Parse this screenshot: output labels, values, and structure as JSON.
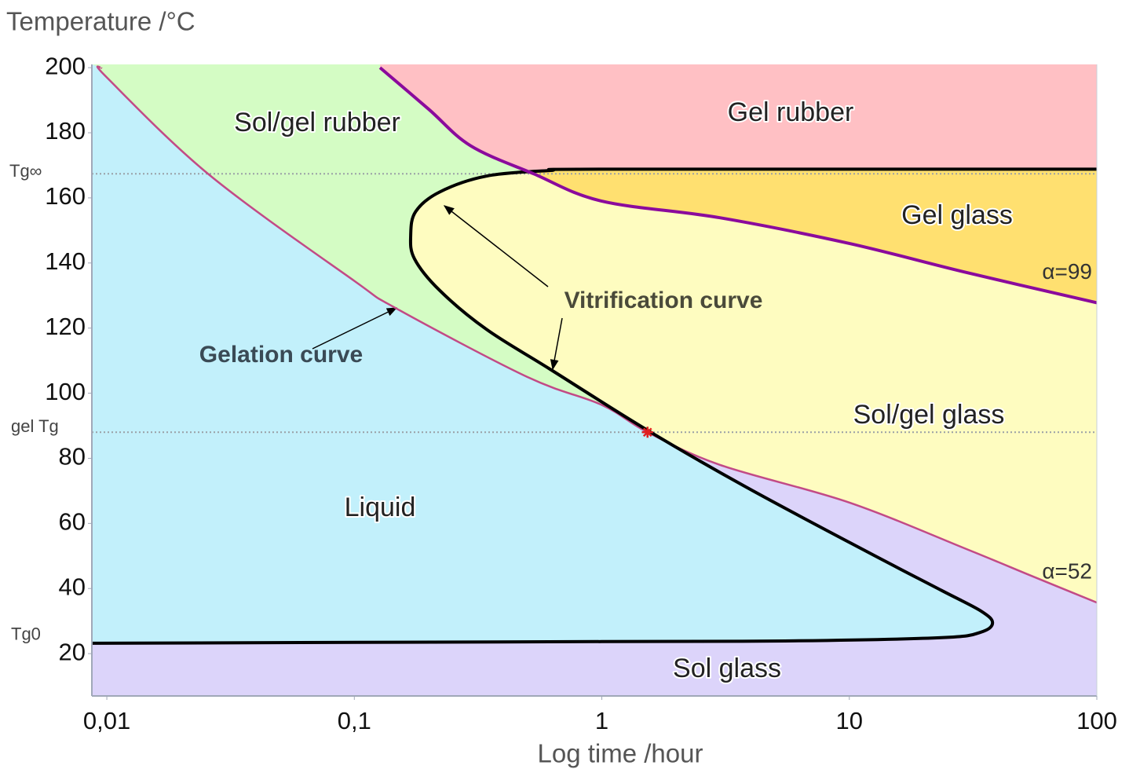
{
  "chart_data": {
    "type": "line",
    "ylabel": "Temperature /°C",
    "xlabel": "Log time /hour",
    "xscale": "log",
    "xlim": [
      0.0087,
      100
    ],
    "ylim": [
      7,
      201
    ],
    "xticks": [
      {
        "value": 0.01,
        "label": "0,01"
      },
      {
        "value": 0.1,
        "label": "0,1"
      },
      1,
      10,
      100
    ],
    "yticks": [
      20,
      40,
      60,
      80,
      100,
      120,
      140,
      160,
      180,
      200
    ],
    "legend": false,
    "series": [
      {
        "name": "Gelation curve",
        "end_label": "α=52",
        "color": "#c24a86",
        "x": [
          0.0095,
          0.01,
          0.026,
          0.1,
          0.148,
          0.5,
          1,
          1.53,
          3,
          10,
          30,
          56,
          100
        ],
        "y": [
          200,
          197,
          167,
          134.5,
          126,
          105,
          96.4,
          88,
          78,
          66.4,
          52,
          43.5,
          35.7
        ]
      },
      {
        "name": "Vitrification curve",
        "color": "#000000",
        "x": [
          100,
          1,
          0.614,
          0.342,
          0.221,
          0.177,
          0.169,
          0.175,
          0.221,
          0.342,
          0.614,
          1.53,
          3.8,
          11.4,
          23.6,
          34,
          37.9,
          34,
          23.6,
          5.5,
          1,
          0.0087
        ],
        "y": [
          168.8,
          168.8,
          168.4,
          166.7,
          161.8,
          155.8,
          148.6,
          141.3,
          131.6,
          119.6,
          107.5,
          88.6,
          71.3,
          51.9,
          39.4,
          33.1,
          29.5,
          26.6,
          24.9,
          23.9,
          23.7,
          23.2
        ]
      },
      {
        "end_label": "α=99",
        "color": "#8b0a9c",
        "x": [
          0.127,
          0.2,
          0.295,
          0.53,
          1,
          3,
          10,
          30,
          100
        ],
        "y": [
          200,
          187.2,
          176,
          167.4,
          159,
          153.9,
          146,
          137,
          127.8
        ]
      }
    ],
    "regions": [
      {
        "label": "Liquid",
        "color": "#c2f0fb"
      },
      {
        "label": "Sol glass",
        "color": "#dcd4fa"
      },
      {
        "label": "Sol/gel rubber",
        "color": "#d4fcc4"
      },
      {
        "label": "Sol/gel glass",
        "color": "#fefcc0"
      },
      {
        "label": "Gel rubber",
        "color": "#ffc0c4"
      },
      {
        "label": "Gel glass",
        "color": "#ffe070"
      }
    ],
    "reference_lines": [
      {
        "label": "Tg∞",
        "value": 167.4,
        "line": true
      },
      {
        "label": "gel Tg",
        "value": 88,
        "line": true
      },
      {
        "label": "Tg0",
        "value": 23.2,
        "line": false
      }
    ],
    "markers": [
      {
        "x": 1.53,
        "y": 88,
        "color": "#e02020"
      }
    ]
  }
}
